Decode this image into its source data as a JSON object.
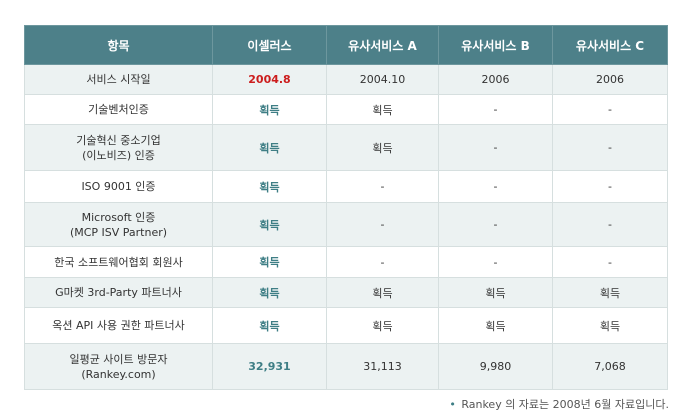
{
  "header": [
    "항목",
    "이셀러스",
    "유사서비스 A",
    "유사서비스 B",
    "유사서비스 C"
  ],
  "rows": [
    [
      "서비스 시작일",
      "2004.8",
      "2004.10",
      "2006",
      "2006"
    ],
    [
      "기술벤처인증",
      "획득",
      "획득",
      "-",
      "-"
    ],
    [
      "기술혁신 중소기업\n(이노비즈) 인증",
      "획득",
      "획득",
      "-",
      "-"
    ],
    [
      "ISO 9001 인증",
      "획득",
      "-",
      "-",
      "-"
    ],
    [
      "Microsoft 인증\n(MCP ISV Partner)",
      "획득",
      "-",
      "-",
      "-"
    ],
    [
      "한국 소프트웨어협회 회원사",
      "획득",
      "-",
      "-",
      "-"
    ],
    [
      "G마켓 3rd-Party 파트너사",
      "획득",
      "획득",
      "획득",
      "획득"
    ],
    [
      "옥션 API 사용 권한 파트너사",
      "획득",
      "획득",
      "획득",
      "획득"
    ],
    [
      "일평균 사이트 방문자\n(Rankey.com)",
      "32,931",
      "31,113",
      "9,980",
      "7,068"
    ]
  ],
  "note": {
    "bullet": "•",
    "text": "Rankey 의 자료는 2008년 6월 자료입니다."
  },
  "colors": {
    "header_bg": "#4d8089",
    "highlight_text": "#3e7e85",
    "date_highlight": "#cc1d1d",
    "row_alt_bg": "#ecf2f2"
  }
}
